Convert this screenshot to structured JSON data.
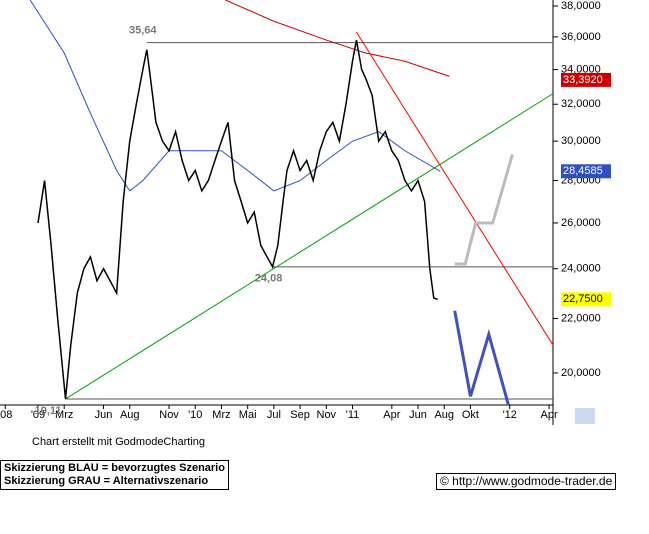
{
  "chart_data": {
    "type": "line",
    "log_scale": true,
    "xlim": [
      -2.9,
      39.3
    ],
    "ylim": [
      18.91,
      38.4
    ],
    "xticks": [
      {
        "value": -2.5,
        "label": "'08"
      },
      {
        "value": 0,
        "label": "'09"
      },
      {
        "value": 2,
        "label": "Mrz"
      },
      {
        "value": 5,
        "label": "Jun"
      },
      {
        "value": 7,
        "label": "Aug"
      },
      {
        "value": 10,
        "label": "Nov"
      },
      {
        "value": 12,
        "label": "'10"
      },
      {
        "value": 14,
        "label": "Mrz"
      },
      {
        "value": 16,
        "label": "Mai"
      },
      {
        "value": 18,
        "label": "Jul"
      },
      {
        "value": 20,
        "label": "Sep"
      },
      {
        "value": 22,
        "label": "Nov"
      },
      {
        "value": 24,
        "label": "'11"
      },
      {
        "value": 27,
        "label": "Apr"
      },
      {
        "value": 29,
        "label": "Jun"
      },
      {
        "value": 31,
        "label": "Aug"
      },
      {
        "value": 33,
        "label": "Okt"
      },
      {
        "value": 36,
        "label": "'12"
      },
      {
        "value": 39,
        "label": "Apr"
      }
    ],
    "yticks": [
      {
        "value": 20,
        "label": "20,0000"
      },
      {
        "value": 22,
        "label": "22,0000"
      },
      {
        "value": 24,
        "label": "24,0000"
      },
      {
        "value": 26,
        "label": "26,0000"
      },
      {
        "value": 28,
        "label": "28,0000"
      },
      {
        "value": 30,
        "label": "30,0000"
      },
      {
        "value": 32,
        "label": "32,0000"
      },
      {
        "value": 34,
        "label": "34,0000"
      },
      {
        "value": 36,
        "label": "36,0000"
      },
      {
        "value": 38,
        "label": "38,0000"
      }
    ],
    "series": [
      {
        "color": "#3050c0",
        "width": 1,
        "x": [
          -0.6,
          2,
          4,
          6,
          7,
          8,
          10,
          12,
          14,
          16,
          18,
          20,
          22,
          24,
          26,
          28,
          30.7
        ],
        "values": [
          38.4,
          35,
          31.5,
          28.5,
          27.5,
          28,
          29.5,
          29.5,
          29.5,
          28.5,
          27.5,
          28,
          29,
          30,
          30.5,
          29.5,
          28.4585
        ]
      },
      {
        "color": "#cc0000",
        "width": 1,
        "x": [
          14.3,
          18,
          22,
          25,
          28,
          31.4
        ],
        "values": [
          38.4,
          37,
          35.8,
          35,
          34.5,
          33.6
        ]
      },
      {
        "color": "#00a000",
        "width": 1,
        "x": [
          2.1,
          39.3
        ],
        "values": [
          19.11,
          32.6
        ]
      },
      {
        "color": "#ff0000",
        "width": 1,
        "x": [
          24.3,
          39.3
        ],
        "values": [
          36.3,
          21
        ]
      },
      {
        "color": "#000000",
        "width": 1.5,
        "x": [
          0,
          0.5,
          1,
          1.5,
          2.1,
          2.5,
          3,
          3.5,
          4,
          4.5,
          5,
          5.5,
          6,
          6.5,
          7,
          7.5,
          8,
          8.3,
          8.5,
          9,
          9.5,
          10,
          10.5,
          11,
          11.5,
          12,
          12.5,
          13,
          13.5,
          14,
          14.5,
          15,
          15.5,
          16,
          16.5,
          17,
          17.9,
          18.3,
          18.7,
          19,
          19.5,
          20,
          20.5,
          21,
          21.5,
          22,
          22.5,
          23,
          23.5,
          24,
          24.3,
          24.7,
          25,
          25.5,
          26,
          26.5,
          27,
          27.5,
          28,
          28.5,
          29,
          29.5,
          29.9,
          30.2,
          30.5
        ],
        "values": [
          26,
          28,
          25,
          22,
          19.11,
          21,
          23,
          24,
          24.5,
          23.5,
          24,
          23.5,
          23,
          27,
          30,
          32,
          34,
          35.2,
          34,
          31,
          30,
          29.5,
          30.5,
          29,
          28,
          28.5,
          27.5,
          28,
          29,
          30,
          31,
          28,
          27,
          26,
          26.5,
          25,
          24.08,
          25,
          27,
          28.5,
          29.5,
          28.5,
          29,
          28,
          29.5,
          30.5,
          31,
          30,
          32,
          34.5,
          35.8,
          34,
          33.5,
          32.5,
          30,
          30.5,
          29.5,
          29,
          28,
          27.5,
          28,
          27,
          24,
          22.8,
          22.75
        ]
      },
      {
        "color": "#4050c0",
        "width": 3,
        "x": [
          31.8,
          33,
          34.4,
          35.9
        ],
        "values": [
          22.3,
          19.2,
          21.4,
          18.91
        ]
      },
      {
        "color": "#bbbbbb",
        "width": 3,
        "x": [
          31.8,
          32.6,
          33.4,
          34.7,
          36.2
        ],
        "values": [
          24.2,
          24.2,
          26,
          26,
          29.3
        ]
      }
    ],
    "levels": [
      {
        "x": 8.3,
        "value": 35.64,
        "label": "35,64"
      },
      {
        "x": 17.9,
        "value": 24.08,
        "label": "24,08"
      },
      {
        "x": 2.1,
        "value": 19.11,
        "label": "19,11"
      }
    ],
    "price_tags": [
      {
        "value": 33.392,
        "label": "33,3920",
        "color": "#cc0000",
        "text_color": "#ffffff"
      },
      {
        "value": 28.4585,
        "label": "28,4585",
        "color": "#3050c0",
        "text_color": "#ffffff"
      },
      {
        "value": 22.75,
        "label": "22,7500",
        "color": "#ffff00",
        "text_color": "#000000"
      }
    ]
  },
  "footer": {
    "credit": "Chart erstellt mit GodmodeCharting",
    "legend": [
      "Skizzierung BLAU = bevorzugtes Szenario",
      "Skizzierung GRAU = Alternativszenario"
    ],
    "source": "© http://www.godmode-trader.de"
  }
}
